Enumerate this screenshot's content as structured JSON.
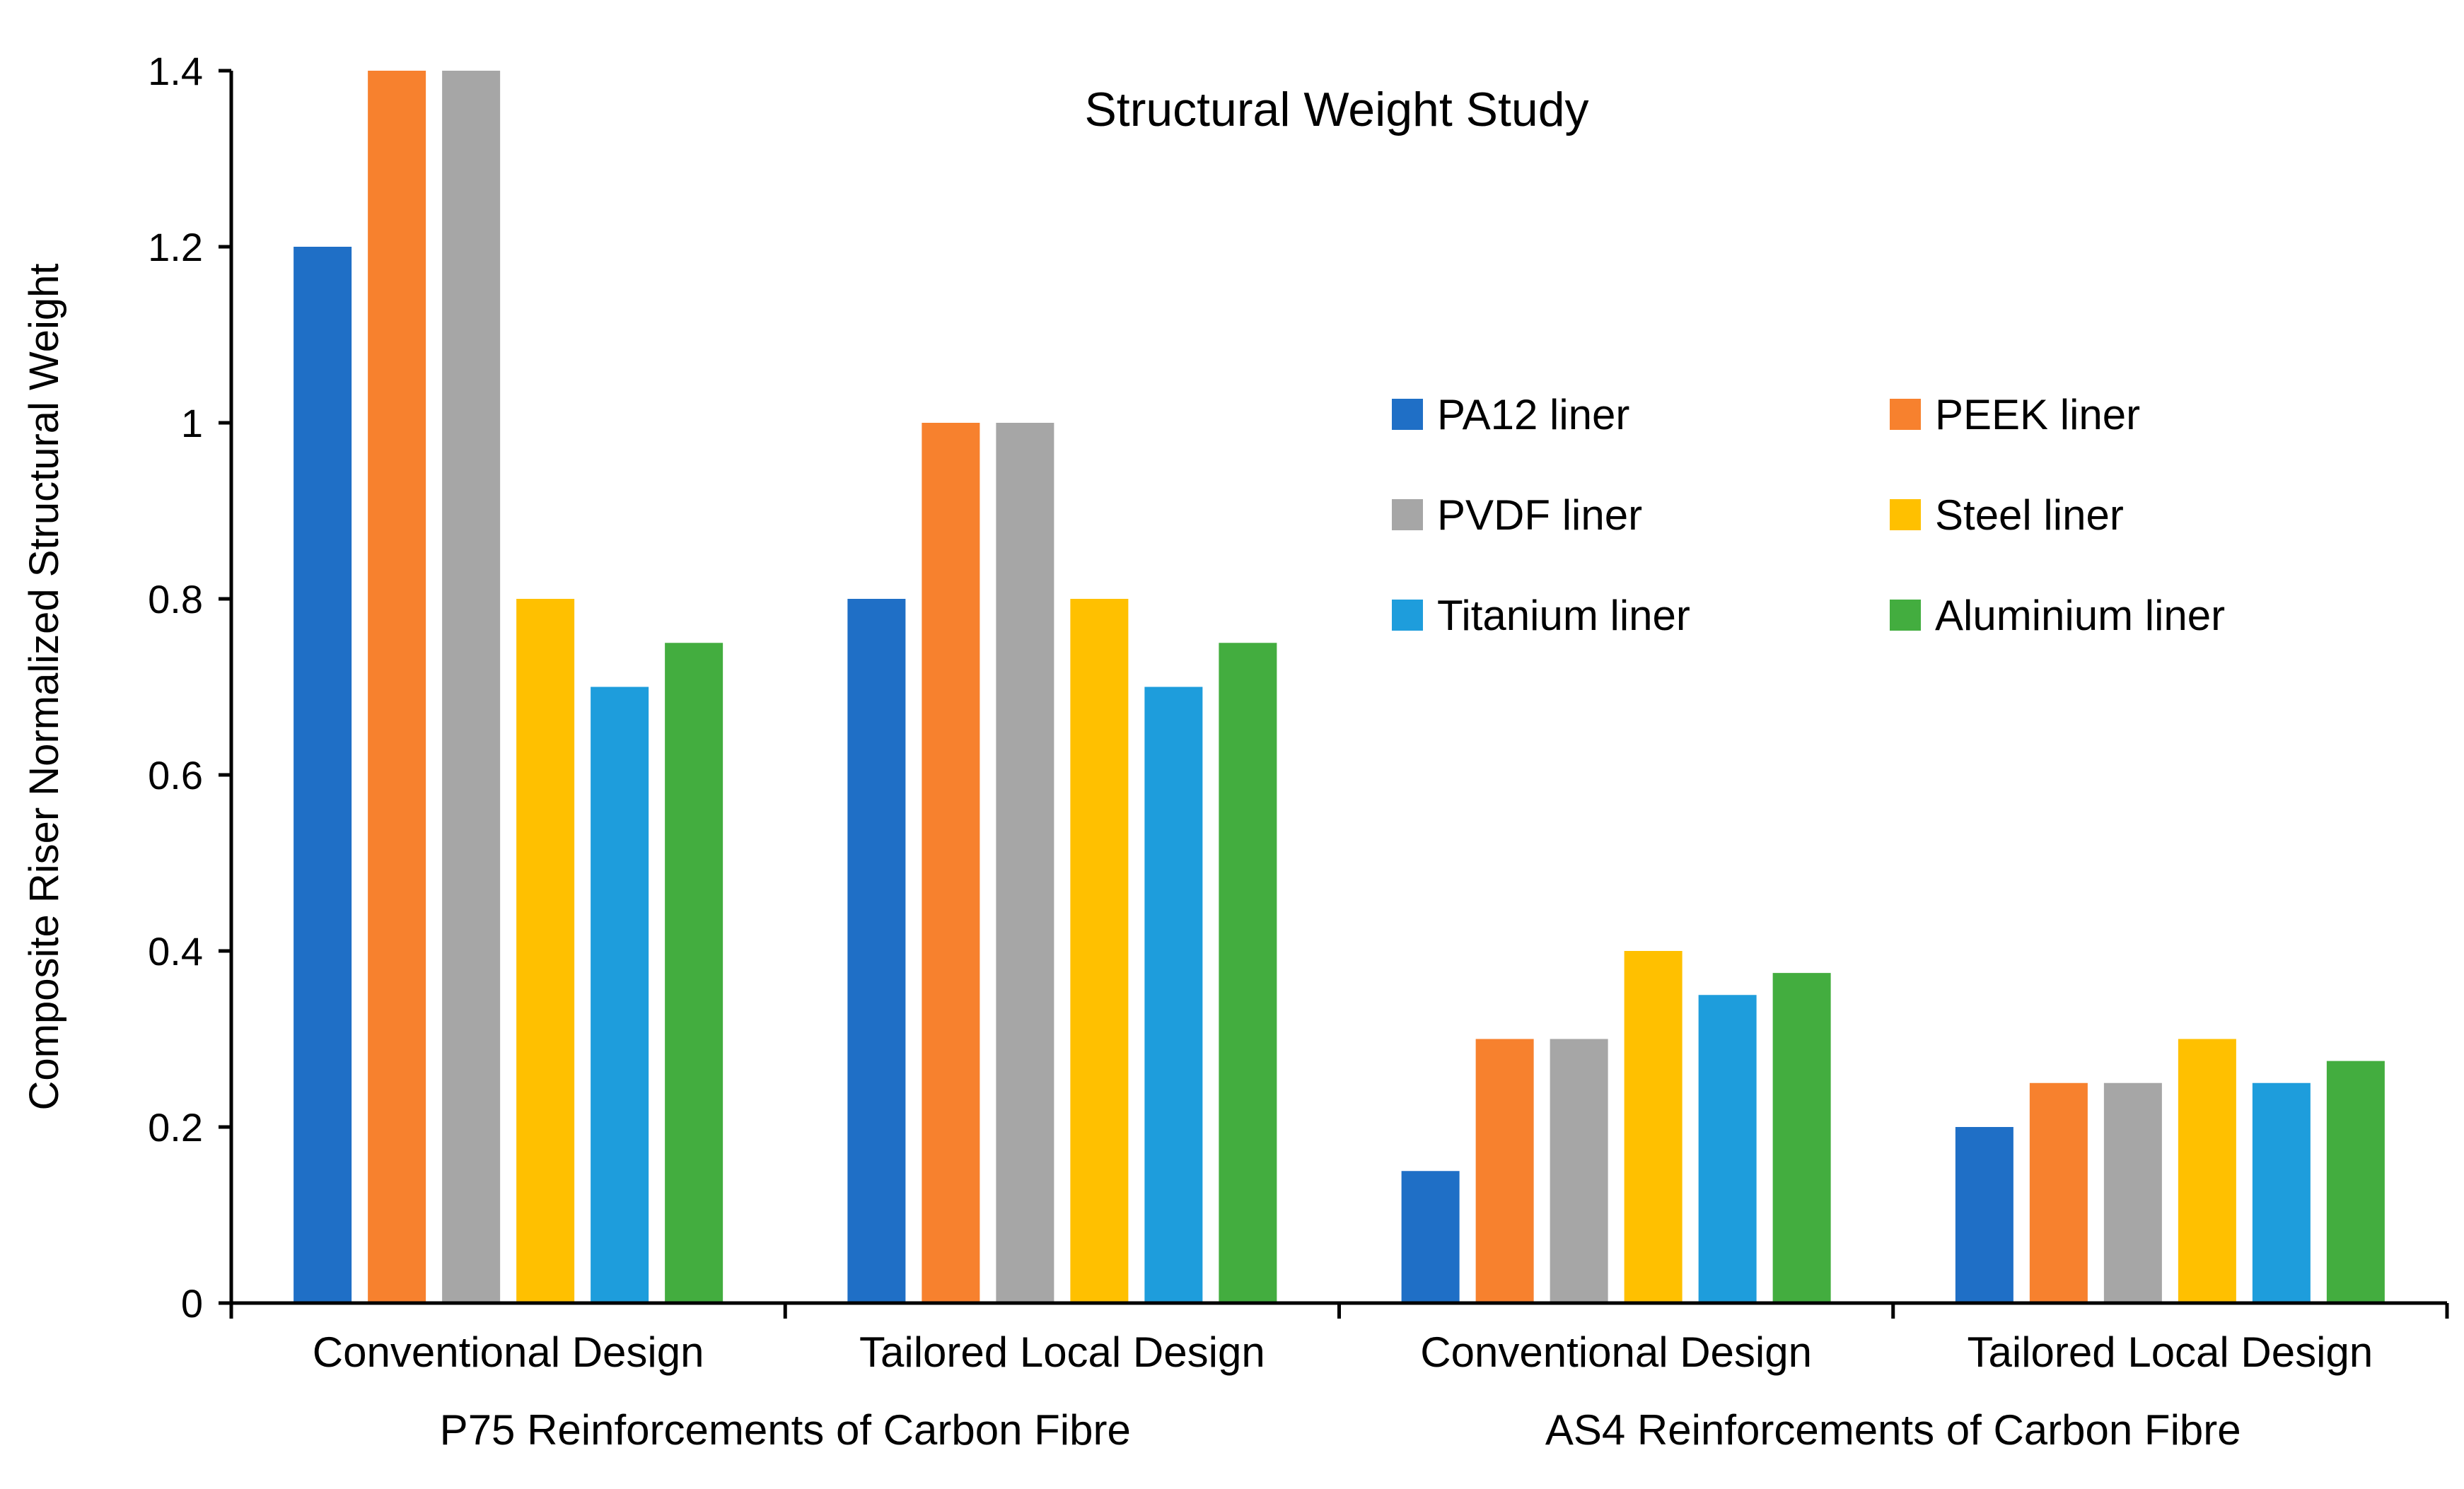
{
  "chart_data": {
    "type": "bar",
    "title": "Structural Weight Study",
    "xlabel": "",
    "ylabel": "Composite Riser Normalized Structural Weight",
    "ylim": [
      0,
      1.4
    ],
    "yticks": [
      {
        "value": 0,
        "label": "0"
      },
      {
        "value": 0.2,
        "label": "0.2"
      },
      {
        "value": 0.4,
        "label": "0.4"
      },
      {
        "value": 0.6,
        "label": "0.6"
      },
      {
        "value": 0.8,
        "label": "0.8"
      },
      {
        "value": 1,
        "label": "1"
      },
      {
        "value": 1.2,
        "label": "1.2"
      },
      {
        "value": 1.4,
        "label": "1.4"
      }
    ],
    "categories": [
      "Conventional Design",
      "Tailored Local Design",
      "Conventional Design",
      "Tailored Local Design"
    ],
    "groups": [
      {
        "label": "P75 Reinforcements of Carbon Fibre",
        "categories": [
          0,
          1
        ]
      },
      {
        "label": "AS4 Reinforcements of Carbon Fibre",
        "categories": [
          2,
          3
        ]
      }
    ],
    "legend_position": "upper-right (inside plot)",
    "series": [
      {
        "name": "PA12 liner",
        "color": "#1f6fc6",
        "values": [
          1.2,
          0.8,
          0.15,
          0.2
        ]
      },
      {
        "name": "PEEK liner",
        "color": "#f7812e",
        "values": [
          1.4,
          1.0,
          0.3,
          0.25
        ]
      },
      {
        "name": "PVDF liner",
        "color": "#a6a6a6",
        "values": [
          1.4,
          1.0,
          0.3,
          0.25
        ]
      },
      {
        "name": "Steel liner",
        "color": "#ffc000",
        "values": [
          0.8,
          0.8,
          0.4,
          0.3
        ]
      },
      {
        "name": "Titanium liner",
        "color": "#1e9ddc",
        "values": [
          0.7,
          0.7,
          0.35,
          0.25
        ]
      },
      {
        "name": "Aluminium liner",
        "color": "#43ad3f",
        "values": [
          0.75,
          0.75,
          0.375,
          0.275
        ]
      }
    ]
  }
}
